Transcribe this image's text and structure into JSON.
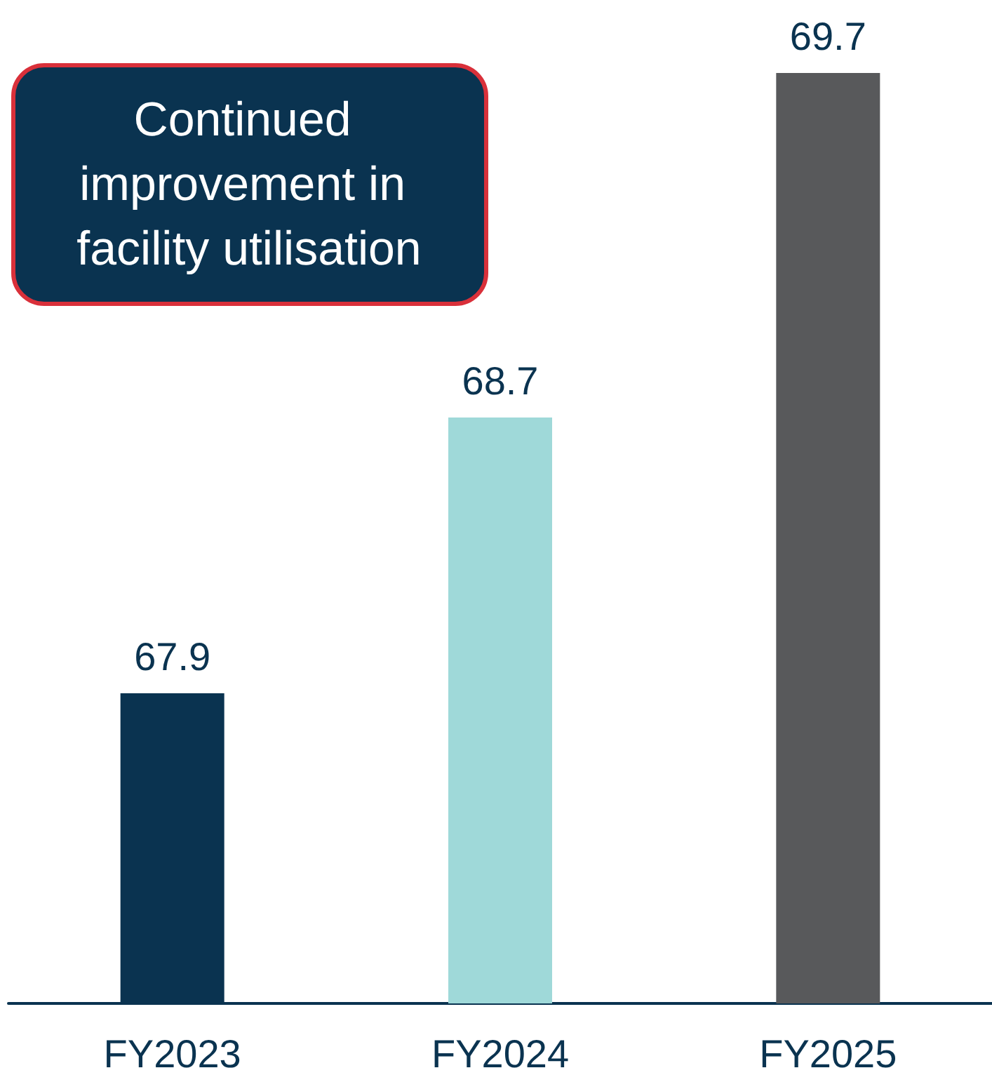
{
  "chart_data": {
    "type": "bar",
    "categories": [
      "FY2023",
      "FY2024",
      "FY2025"
    ],
    "values": [
      67.9,
      68.7,
      69.7
    ],
    "colors": [
      "#0a3350",
      "#9fd9d9",
      "#58595b"
    ],
    "ylim": [
      67,
      69.7
    ],
    "data_labels": true,
    "tick_labels": "x",
    "annotations": [
      "Continued improvement in facility utilisation"
    ]
  }
}
